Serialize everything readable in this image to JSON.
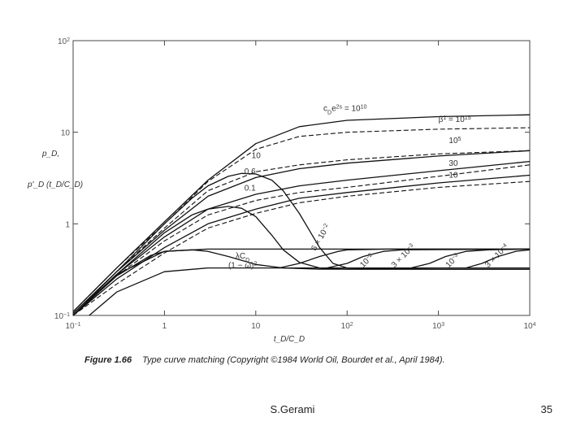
{
  "chart_data": {
    "type": "line",
    "scale": "log-log",
    "xlim": [
      0.1,
      10000
    ],
    "ylim": [
      0.1,
      100
    ],
    "xlabel": "t_D/C_D",
    "ylabel_top": "p_D,",
    "ylabel_bottom": "p'_D (t_D/C_D)",
    "x_ticks": [
      {
        "value": 0.1,
        "base": "10",
        "exp": "−1"
      },
      {
        "value": 1,
        "base": "1",
        "exp": ""
      },
      {
        "value": 10,
        "base": "10",
        "exp": ""
      },
      {
        "value": 100,
        "base": "10",
        "exp": "2"
      },
      {
        "value": 1000,
        "base": "10",
        "exp": "3"
      },
      {
        "value": 10000,
        "base": "10",
        "exp": "4"
      }
    ],
    "y_ticks": [
      {
        "value": 0.1,
        "base": "10",
        "exp": "−1"
      },
      {
        "value": 1,
        "base": "1",
        "exp": ""
      },
      {
        "value": 10,
        "base": "10",
        "exp": ""
      },
      {
        "value": 100,
        "base": "10",
        "exp": "2"
      }
    ],
    "series": [
      {
        "style": "solid",
        "x": [
          0.1,
          0.3,
          1,
          3,
          10,
          30,
          100,
          1000,
          10000
        ],
        "y": [
          0.11,
          0.33,
          1.05,
          3.0,
          7.5,
          11.5,
          13.5,
          14.8,
          15.5
        ]
      },
      {
        "style": "dashed",
        "x": [
          0.1,
          0.3,
          1,
          3,
          10,
          30,
          100,
          1000,
          10000
        ],
        "y": [
          0.11,
          0.33,
          1.0,
          2.9,
          6.5,
          9.0,
          10.0,
          10.8,
          11.2
        ]
      },
      {
        "style": "solid",
        "x": [
          0.1,
          0.3,
          1,
          3,
          10,
          30,
          100,
          1000,
          10000
        ],
        "y": [
          0.105,
          0.3,
          0.85,
          2.0,
          3.2,
          4.0,
          4.6,
          5.5,
          6.3
        ]
      },
      {
        "style": "dashed",
        "x": [
          0.1,
          0.3,
          1,
          3,
          10,
          30,
          100,
          1000,
          10000
        ],
        "y": [
          0.105,
          0.3,
          0.9,
          2.3,
          3.7,
          4.4,
          5.0,
          5.8,
          6.3
        ]
      },
      {
        "style": "solid",
        "x": [
          0.1,
          0.3,
          1,
          3,
          10,
          30,
          100,
          1000,
          10000
        ],
        "y": [
          0.1,
          0.28,
          0.72,
          1.45,
          2.1,
          2.6,
          3.0,
          3.8,
          4.8
        ]
      },
      {
        "style": "dashed",
        "x": [
          0.1,
          0.3,
          1,
          3,
          10,
          30,
          100,
          1000,
          10000
        ],
        "y": [
          0.1,
          0.27,
          0.65,
          1.25,
          1.8,
          2.2,
          2.5,
          3.3,
          4.4
        ]
      },
      {
        "style": "solid",
        "x": [
          0.1,
          0.3,
          1,
          3,
          10,
          30,
          100,
          1000,
          10000
        ],
        "y": [
          0.1,
          0.25,
          0.55,
          1.0,
          1.45,
          1.9,
          2.2,
          2.8,
          3.4
        ]
      },
      {
        "style": "dashed",
        "x": [
          0.1,
          0.3,
          1,
          3,
          10,
          30,
          100,
          1000,
          10000
        ],
        "y": [
          0.1,
          0.22,
          0.48,
          0.9,
          1.3,
          1.7,
          2.0,
          2.5,
          2.9
        ]
      },
      {
        "style": "solid",
        "x": [
          0.1,
          0.3,
          1,
          2,
          3,
          5,
          7,
          10,
          15,
          20,
          30,
          50,
          70,
          100,
          1000,
          10000
        ],
        "y": [
          0.1,
          0.3,
          1.0,
          1.9,
          2.6,
          3.3,
          3.55,
          3.5,
          3.0,
          2.3,
          1.3,
          0.55,
          0.37,
          0.33,
          0.32,
          0.32
        ]
      },
      {
        "style": "solid",
        "x": [
          0.1,
          0.3,
          1,
          2,
          3,
          5,
          7,
          10,
          15,
          20,
          30,
          50,
          100,
          1000,
          10000
        ],
        "y": [
          0.1,
          0.28,
          0.8,
          1.25,
          1.45,
          1.55,
          1.48,
          1.2,
          0.75,
          0.52,
          0.38,
          0.33,
          0.32,
          0.32,
          0.32
        ]
      },
      {
        "style": "solid",
        "x": [
          0.1,
          0.3,
          0.7,
          1,
          2,
          3,
          5,
          10,
          20,
          50,
          100,
          1000,
          10000
        ],
        "y": [
          0.1,
          0.27,
          0.45,
          0.5,
          0.52,
          0.5,
          0.44,
          0.36,
          0.33,
          0.32,
          0.32,
          0.32,
          0.32
        ]
      },
      {
        "style": "solid",
        "x": [
          0.15,
          0.3,
          1,
          3,
          10,
          100,
          10000
        ],
        "y": [
          0.1,
          0.18,
          0.3,
          0.33,
          0.33,
          0.33,
          0.33
        ]
      },
      {
        "style": "solid",
        "x": [
          0.1,
          0.3,
          1,
          3,
          10,
          10000
        ],
        "y": [
          0.1,
          0.28,
          0.5,
          0.53,
          0.53,
          0.53
        ]
      },
      {
        "style": "solid",
        "x": [
          18,
          30,
          50,
          80,
          100,
          300,
          10000
        ],
        "y": [
          0.33,
          0.37,
          0.44,
          0.5,
          0.52,
          0.53,
          0.53
        ]
      },
      {
        "style": "solid",
        "x": [
          60,
          100,
          150,
          250,
          400,
          10000
        ],
        "y": [
          0.33,
          0.37,
          0.44,
          0.5,
          0.52,
          0.53
        ]
      },
      {
        "style": "solid",
        "x": [
          500,
          800,
          1200,
          2000,
          3500,
          10000
        ],
        "y": [
          0.33,
          0.37,
          0.44,
          0.5,
          0.52,
          0.53
        ]
      },
      {
        "style": "solid",
        "x": [
          2000,
          3000,
          4500,
          7000,
          10000
        ],
        "y": [
          0.33,
          0.37,
          0.44,
          0.5,
          0.52
        ]
      }
    ],
    "annotations": [
      {
        "text": "c",
        "sub": "D",
        "after": "e",
        "sup": "2s",
        "tail": " = 10",
        "sup2": "10",
        "x": 55,
        "y": 17
      },
      {
        "text": "β",
        "sup": "1",
        "tail": " = 10",
        "sup2": "15",
        "x": 1000,
        "y": 13
      },
      {
        "text": "10",
        "sup": "5",
        "x": 1300,
        "y": 7.6
      },
      {
        "text": "10",
        "x": 9,
        "y": 5.2
      },
      {
        "text": "30",
        "x": 1300,
        "y": 4.3
      },
      {
        "text": "0.6",
        "x": 7.5,
        "y": 3.5
      },
      {
        "text": "10",
        "x": 1300,
        "y": 3.2
      },
      {
        "text": "0.1",
        "x": 7.5,
        "y": 2.3
      },
      {
        "text": "6 × 10",
        "sup": "−2",
        "x": 45,
        "y": 0.5,
        "rotate": -60
      },
      {
        "text": "λC",
        "sub": "D",
        "x": 6,
        "y": 0.42
      },
      {
        "text": "(1 − ω)",
        "sup": "2",
        "x": 5,
        "y": 0.33
      },
      {
        "text": "10",
        "sup": "−2",
        "x": 150,
        "y": 0.33,
        "rotate": -45
      },
      {
        "text": "3 × 10",
        "sup": "−3",
        "x": 330,
        "y": 0.33,
        "rotate": -45
      },
      {
        "text": "10",
        "sup": "−3",
        "x": 1300,
        "y": 0.33,
        "rotate": -45
      },
      {
        "text": "3 × 10",
        "sup": "−4",
        "x": 3500,
        "y": 0.33,
        "rotate": -45
      }
    ]
  },
  "caption": {
    "figure_label": "Figure 1.66",
    "text": "Type curve matching (Copyright ©1984 World Oil, Bourdet et al., April 1984)."
  },
  "footer": {
    "author": "S.Gerami",
    "page_number": "35"
  }
}
